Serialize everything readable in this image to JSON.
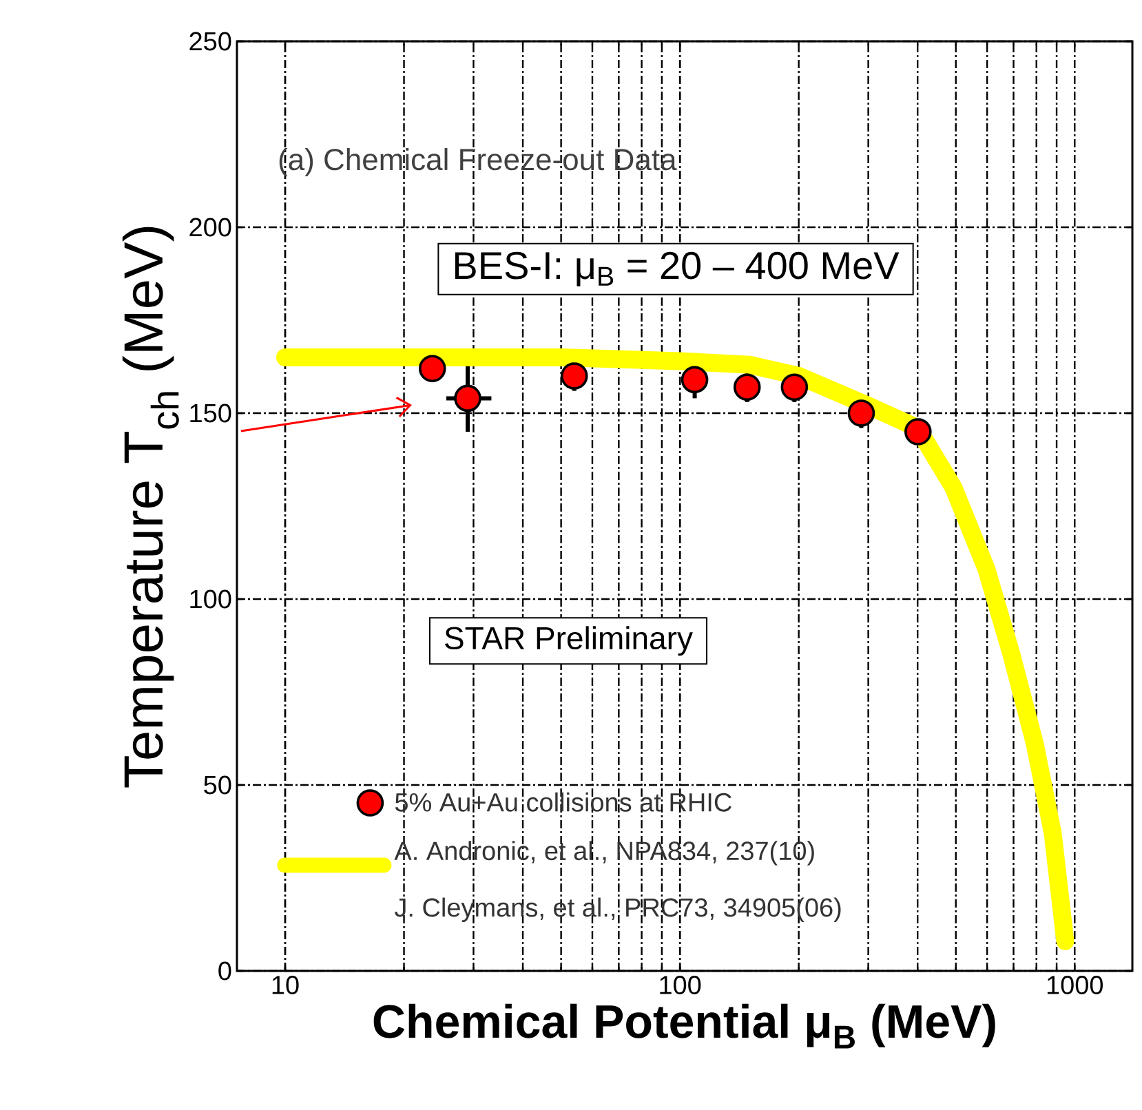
{
  "chart_data": {
    "type": "scatter",
    "title": "(a) Chemical Freeze-out Data",
    "xlabel": "Chemical Potential μ$_{B}$ (MeV)",
    "ylabel": "Temperature T$_{ch}$ (MeV)",
    "annotations": [
      "BES-I: μ$_{B}$ = 20 – 400 MeV",
      "STAR Preliminary",
      "J. Cleymans, et al., PRC73, 34905(06)"
    ],
    "log": "x",
    "xlim": [
      7.55,
      1400
    ],
    "xticks": [
      10,
      100,
      1000
    ],
    "ylim": [
      0,
      250
    ],
    "yticks": [
      0,
      50,
      100,
      150,
      200,
      250
    ],
    "grid": true,
    "legend": "bottom left",
    "series": [
      {
        "name": "5% Au+Au collisions at RHIC",
        "marker": "circle",
        "color": "#ff0000",
        "x": [
          23.6,
          29,
          54,
          109,
          148,
          195,
          288,
          401
        ],
        "values": [
          162,
          154,
          160,
          159,
          157,
          157,
          150,
          145
        ],
        "errors": [
          3,
          9,
          4,
          5,
          4,
          4,
          4,
          3
        ],
        "xerrors": [
          null,
          [
            25.6,
            33.3
          ],
          null,
          null,
          null,
          null,
          null,
          null
        ]
      },
      {
        "name": "A. Andronic, et al., NPA834, 237(10)",
        "type": "line",
        "marker": "none",
        "color": "#ffff00",
        "x": [
          10,
          50,
          100,
          150,
          200,
          300,
          400,
          493,
          598,
          692,
          793,
          880,
          946
        ],
        "values": [
          165,
          165,
          164,
          163,
          160,
          152,
          146,
          130,
          108,
          85,
          61,
          37,
          8
        ]
      }
    ]
  }
}
